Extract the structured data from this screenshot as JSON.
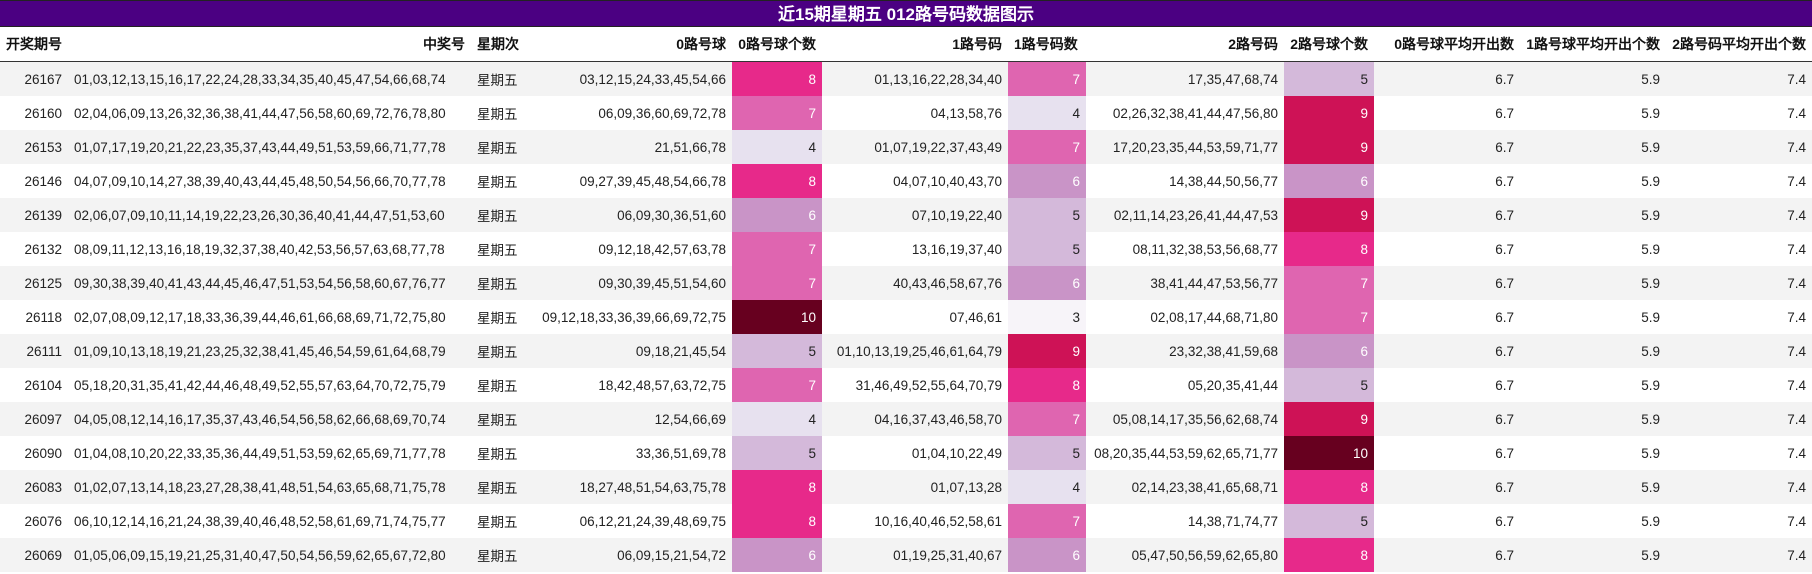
{
  "title": "近15期星期五 012路号码数据图示",
  "headers": [
    "开奖期号",
    "中奖号",
    "星期次",
    "0路号球",
    "0路号球个数",
    "1路号码",
    "1路号码数",
    "2路号码",
    "2路号球个数",
    "0路号球平均开出数",
    "1路号球平均开出个数",
    "2路号码平均开出个数"
  ],
  "heat_colors": {
    "3": "#f7f4f9",
    "4": "#e7e1ef",
    "5": "#d4b9da",
    "6": "#c994c7",
    "7": "#df65b0",
    "8": "#e7298a",
    "9": "#ce1256",
    "10": "#67001f"
  },
  "chart_data": {
    "type": "table",
    "title": "近15期星期五 012路号码数据图示",
    "columns": [
      "开奖期号",
      "中奖号",
      "星期次",
      "0路号球",
      "0路号球个数",
      "1路号码",
      "1路号码数",
      "2路号码",
      "2路号球个数",
      "0路号球平均开出数",
      "1路号球平均开出个数",
      "2路号码平均开出个数"
    ],
    "rows": [
      [
        "26167",
        "01,03,12,13,15,16,17,22,24,28,33,34,35,40,45,47,54,66,68,74",
        "星期五",
        "03,12,15,24,33,45,54,66",
        "8",
        "01,13,16,22,28,34,40",
        "7",
        "17,35,47,68,74",
        "5",
        "6.7",
        "5.9",
        "7.4"
      ],
      [
        "26160",
        "02,04,06,09,13,26,32,36,38,41,44,47,56,58,60,69,72,76,78,80",
        "星期五",
        "06,09,36,60,69,72,78",
        "7",
        "04,13,58,76",
        "4",
        "02,26,32,38,41,44,47,56,80",
        "9",
        "6.7",
        "5.9",
        "7.4"
      ],
      [
        "26153",
        "01,07,17,19,20,21,22,23,35,37,43,44,49,51,53,59,66,71,77,78",
        "星期五",
        "21,51,66,78",
        "4",
        "01,07,19,22,37,43,49",
        "7",
        "17,20,23,35,44,53,59,71,77",
        "9",
        "6.7",
        "5.9",
        "7.4"
      ],
      [
        "26146",
        "04,07,09,10,14,27,38,39,40,43,44,45,48,50,54,56,66,70,77,78",
        "星期五",
        "09,27,39,45,48,54,66,78",
        "8",
        "04,07,10,40,43,70",
        "6",
        "14,38,44,50,56,77",
        "6",
        "6.7",
        "5.9",
        "7.4"
      ],
      [
        "26139",
        "02,06,07,09,10,11,14,19,22,23,26,30,36,40,41,44,47,51,53,60",
        "星期五",
        "06,09,30,36,51,60",
        "6",
        "07,10,19,22,40",
        "5",
        "02,11,14,23,26,41,44,47,53",
        "9",
        "6.7",
        "5.9",
        "7.4"
      ],
      [
        "26132",
        "08,09,11,12,13,16,18,19,32,37,38,40,42,53,56,57,63,68,77,78",
        "星期五",
        "09,12,18,42,57,63,78",
        "7",
        "13,16,19,37,40",
        "5",
        "08,11,32,38,53,56,68,77",
        "8",
        "6.7",
        "5.9",
        "7.4"
      ],
      [
        "26125",
        "09,30,38,39,40,41,43,44,45,46,47,51,53,54,56,58,60,67,76,77",
        "星期五",
        "09,30,39,45,51,54,60",
        "7",
        "40,43,46,58,67,76",
        "6",
        "38,41,44,47,53,56,77",
        "7",
        "6.7",
        "5.9",
        "7.4"
      ],
      [
        "26118",
        "02,07,08,09,12,17,18,33,36,39,44,46,61,66,68,69,71,72,75,80",
        "星期五",
        "09,12,18,33,36,39,66,69,72,75",
        "10",
        "07,46,61",
        "3",
        "02,08,17,44,68,71,80",
        "7",
        "6.7",
        "5.9",
        "7.4"
      ],
      [
        "26111",
        "01,09,10,13,18,19,21,23,25,32,38,41,45,46,54,59,61,64,68,79",
        "星期五",
        "09,18,21,45,54",
        "5",
        "01,10,13,19,25,46,61,64,79",
        "9",
        "23,32,38,41,59,68",
        "6",
        "6.7",
        "5.9",
        "7.4"
      ],
      [
        "26104",
        "05,18,20,31,35,41,42,44,46,48,49,52,55,57,63,64,70,72,75,79",
        "星期五",
        "18,42,48,57,63,72,75",
        "7",
        "31,46,49,52,55,64,70,79",
        "8",
        "05,20,35,41,44",
        "5",
        "6.7",
        "5.9",
        "7.4"
      ],
      [
        "26097",
        "04,05,08,12,14,16,17,35,37,43,46,54,56,58,62,66,68,69,70,74",
        "星期五",
        "12,54,66,69",
        "4",
        "04,16,37,43,46,58,70",
        "7",
        "05,08,14,17,35,56,62,68,74",
        "9",
        "6.7",
        "5.9",
        "7.4"
      ],
      [
        "26090",
        "01,04,08,10,20,22,33,35,36,44,49,51,53,59,62,65,69,71,77,78",
        "星期五",
        "33,36,51,69,78",
        "5",
        "01,04,10,22,49",
        "5",
        "08,20,35,44,53,59,62,65,71,77",
        "10",
        "6.7",
        "5.9",
        "7.4"
      ],
      [
        "26083",
        "01,02,07,13,14,18,23,27,28,38,41,48,51,54,63,65,68,71,75,78",
        "星期五",
        "18,27,48,51,54,63,75,78",
        "8",
        "01,07,13,28",
        "4",
        "02,14,23,38,41,65,68,71",
        "8",
        "6.7",
        "5.9",
        "7.4"
      ],
      [
        "26076",
        "06,10,12,14,16,21,24,38,39,40,46,48,52,58,61,69,71,74,75,77",
        "星期五",
        "06,12,21,24,39,48,69,75",
        "8",
        "10,16,40,46,52,58,61",
        "7",
        "14,38,71,74,77",
        "5",
        "6.7",
        "5.9",
        "7.4"
      ],
      [
        "26069",
        "01,05,06,09,15,19,21,25,31,40,47,50,54,56,59,62,65,67,72,80",
        "星期五",
        "06,09,15,21,54,72",
        "6",
        "01,19,25,31,40,67",
        "6",
        "05,47,50,56,59,62,65,80",
        "8",
        "6.7",
        "5.9",
        "7.4"
      ]
    ]
  }
}
